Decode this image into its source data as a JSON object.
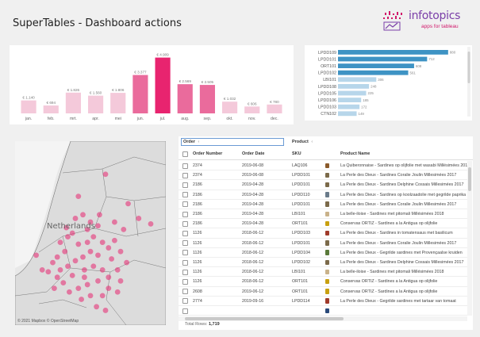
{
  "header": {
    "title": "SuperTables - Dashboard actions",
    "logo_name": "infotopics",
    "logo_tagline": "apps for tableau"
  },
  "colors": {
    "accent": "#e8246f",
    "accent_light": "#f4b9cf",
    "hbar": "#3e93c4",
    "hbar_light": "#b7d6ea"
  },
  "chart_data": [
    {
      "type": "bar",
      "categories": [
        "jan.",
        "feb.",
        "mrt.",
        "apr.",
        "mei",
        "jun.",
        "jul.",
        "aug.",
        "sep.",
        "okt.",
        "nov.",
        "dec."
      ],
      "values": [
        1140,
        694,
        1826,
        1560,
        1806,
        3377,
        4909,
        2569,
        2505,
        1032,
        606,
        780
      ],
      "labels": [
        "€ 1.140",
        "€ 694",
        "€ 1.826",
        "€ 1.560",
        "€ 1.806",
        "€ 3.377",
        "€ 4.909",
        "€ 2.569",
        "€ 2.505",
        "€ 1.032",
        "€ 606",
        "€ 780"
      ],
      "highlight": [
        0,
        0,
        0,
        0,
        0,
        1,
        2,
        1,
        1,
        0,
        0,
        0
      ],
      "ylim": [
        0,
        5300
      ]
    },
    {
      "type": "bar",
      "orientation": "horizontal",
      "categories": [
        "LPDD109",
        "LPDD101",
        "ORT101",
        "LPDD102",
        "LBI101",
        "LPDD108",
        "LPDD105",
        "LPDD106",
        "LPDD103",
        "CTN102"
      ],
      "values": [
        880,
        712,
        608,
        561,
        306,
        248,
        225,
        185,
        172,
        149
      ],
      "labels": [
        "880",
        "712",
        "608",
        "561",
        "306",
        "248",
        "225",
        "185",
        "172",
        "149"
      ],
      "xlim": [
        0,
        900
      ]
    }
  ],
  "map": {
    "label": "Netherlands",
    "attribution": "© 2021 Mapbox © OpenStreetMap",
    "points": [
      [
        0.42,
        0.3
      ],
      [
        0.6,
        0.18
      ],
      [
        0.75,
        0.34
      ],
      [
        0.72,
        0.48
      ],
      [
        0.82,
        0.42
      ],
      [
        0.9,
        0.45
      ],
      [
        0.55,
        0.46
      ],
      [
        0.48,
        0.48
      ],
      [
        0.45,
        0.4
      ],
      [
        0.4,
        0.42
      ],
      [
        0.38,
        0.5
      ],
      [
        0.35,
        0.52
      ],
      [
        0.3,
        0.55
      ],
      [
        0.33,
        0.6
      ],
      [
        0.28,
        0.63
      ],
      [
        0.25,
        0.66
      ],
      [
        0.42,
        0.56
      ],
      [
        0.48,
        0.55
      ],
      [
        0.52,
        0.52
      ],
      [
        0.58,
        0.55
      ],
      [
        0.62,
        0.58
      ],
      [
        0.66,
        0.54
      ],
      [
        0.7,
        0.6
      ],
      [
        0.64,
        0.64
      ],
      [
        0.55,
        0.62
      ],
      [
        0.5,
        0.6
      ],
      [
        0.45,
        0.63
      ],
      [
        0.4,
        0.65
      ],
      [
        0.35,
        0.68
      ],
      [
        0.3,
        0.7
      ],
      [
        0.22,
        0.71
      ],
      [
        0.18,
        0.7
      ],
      [
        0.28,
        0.74
      ],
      [
        0.38,
        0.73
      ],
      [
        0.46,
        0.7
      ],
      [
        0.52,
        0.68
      ],
      [
        0.58,
        0.7
      ],
      [
        0.62,
        0.74
      ],
      [
        0.68,
        0.7
      ],
      [
        0.74,
        0.66
      ],
      [
        0.55,
        0.76
      ],
      [
        0.48,
        0.78
      ],
      [
        0.42,
        0.8
      ],
      [
        0.36,
        0.82
      ],
      [
        0.5,
        0.84
      ],
      [
        0.58,
        0.84
      ],
      [
        0.62,
        0.8
      ],
      [
        0.68,
        0.82
      ],
      [
        0.44,
        0.86
      ],
      [
        0.54,
        0.9
      ],
      [
        0.6,
        0.92
      ],
      [
        0.46,
        0.74
      ],
      [
        0.32,
        0.77
      ],
      [
        0.26,
        0.8
      ],
      [
        0.7,
        0.76
      ],
      [
        0.14,
        0.62
      ],
      [
        0.5,
        0.44
      ],
      [
        0.34,
        0.47
      ],
      [
        0.56,
        0.4
      ],
      [
        0.66,
        0.44
      ]
    ]
  },
  "table": {
    "filters": {
      "order": "Order",
      "product": "Product"
    },
    "columns": [
      "Order Number",
      "Order Date",
      "SKU",
      "Product Name"
    ],
    "rows": [
      {
        "order": "2374",
        "date": "2019-06-08",
        "sku": "LAQ106",
        "product": "La Quiberonnaise - Sardines op olijfolie met wasabi Millésimées 2017",
        "can": "#8a5a2b"
      },
      {
        "order": "2374",
        "date": "2019-06-08",
        "sku": "LPDD101",
        "product": "La Perle des Dieux - Sardines Coralie Joulin Millesimées 2017",
        "can": "#7b6a4a"
      },
      {
        "order": "2186",
        "date": "2019-04-28",
        "sku": "LPDD101",
        "product": "La Perle des Dieux - Sardines Delphine Cossais Millesimées 2017",
        "can": "#7b6a4a"
      },
      {
        "order": "2186",
        "date": "2019-04-28",
        "sku": "LPDD110",
        "product": "La Perle des Dieux - Sardines op koolzaadolie met gegrilde paprika",
        "can": "#6a7b8a"
      },
      {
        "order": "2186",
        "date": "2019-04-28",
        "sku": "LPDD101",
        "product": "La Perle des Dieux - Sardines Coralie Joulin Millesimées 2017",
        "can": "#7b6a4a"
      },
      {
        "order": "2186",
        "date": "2019-04-28",
        "sku": "LBI101",
        "product": "La belle-iloise - Sardines met pitomali Millésimées 2018",
        "can": "#c9b28a"
      },
      {
        "order": "2186",
        "date": "2019-04-28",
        "sku": "ORT101",
        "product": "Conservas ORTIZ - Sardines a la Antigua op olijfolie",
        "can": "#c8a010"
      },
      {
        "order": "1126",
        "date": "2018-06-12",
        "sku": "LPDD103",
        "product": "La Perle des Dieux - Sardines in tomatensaus met basilicum",
        "can": "#a03a2a"
      },
      {
        "order": "1126",
        "date": "2018-06-12",
        "sku": "LPDD101",
        "product": "La Perle des Dieux - Sardines Coralie Joulin Millesimées 2017",
        "can": "#7b6a4a"
      },
      {
        "order": "1126",
        "date": "2018-06-12",
        "sku": "LPDD104",
        "product": "La Perle des Dieux - Gegrilde sardines met Provençaalse kruiden",
        "can": "#5a7a3a"
      },
      {
        "order": "1126",
        "date": "2018-06-12",
        "sku": "LPDD102",
        "product": "La Perle des Dieux - Sardines Delphine Cossais Millesimées 2017",
        "can": "#7b6a4a"
      },
      {
        "order": "1126",
        "date": "2018-06-12",
        "sku": "LBI101",
        "product": "La belle-iloise - Sardines met pitomali Millésimées 2018",
        "can": "#c9b28a"
      },
      {
        "order": "1126",
        "date": "2018-06-12",
        "sku": "ORT101",
        "product": "Conservas ORTIZ - Sardines a la Antigua op olijfolie",
        "can": "#c8a010"
      },
      {
        "order": "2608",
        "date": "2019-06-12",
        "sku": "ORT101",
        "product": "Conservas ORTIZ - Sardines a la Antigua op olijfolie",
        "can": "#c8a010"
      },
      {
        "order": "2774",
        "date": "2019-09-16",
        "sku": "LPDD114",
        "product": "La Perle des Dieux - Gegrilde sardines met tartaar van tomaat",
        "can": "#a03a2a"
      },
      {
        "order": "",
        "date": "",
        "sku": "",
        "product": "",
        "can": "#2a4a7a"
      }
    ],
    "total_label": "Total Rows:",
    "total_value": "1,719"
  }
}
